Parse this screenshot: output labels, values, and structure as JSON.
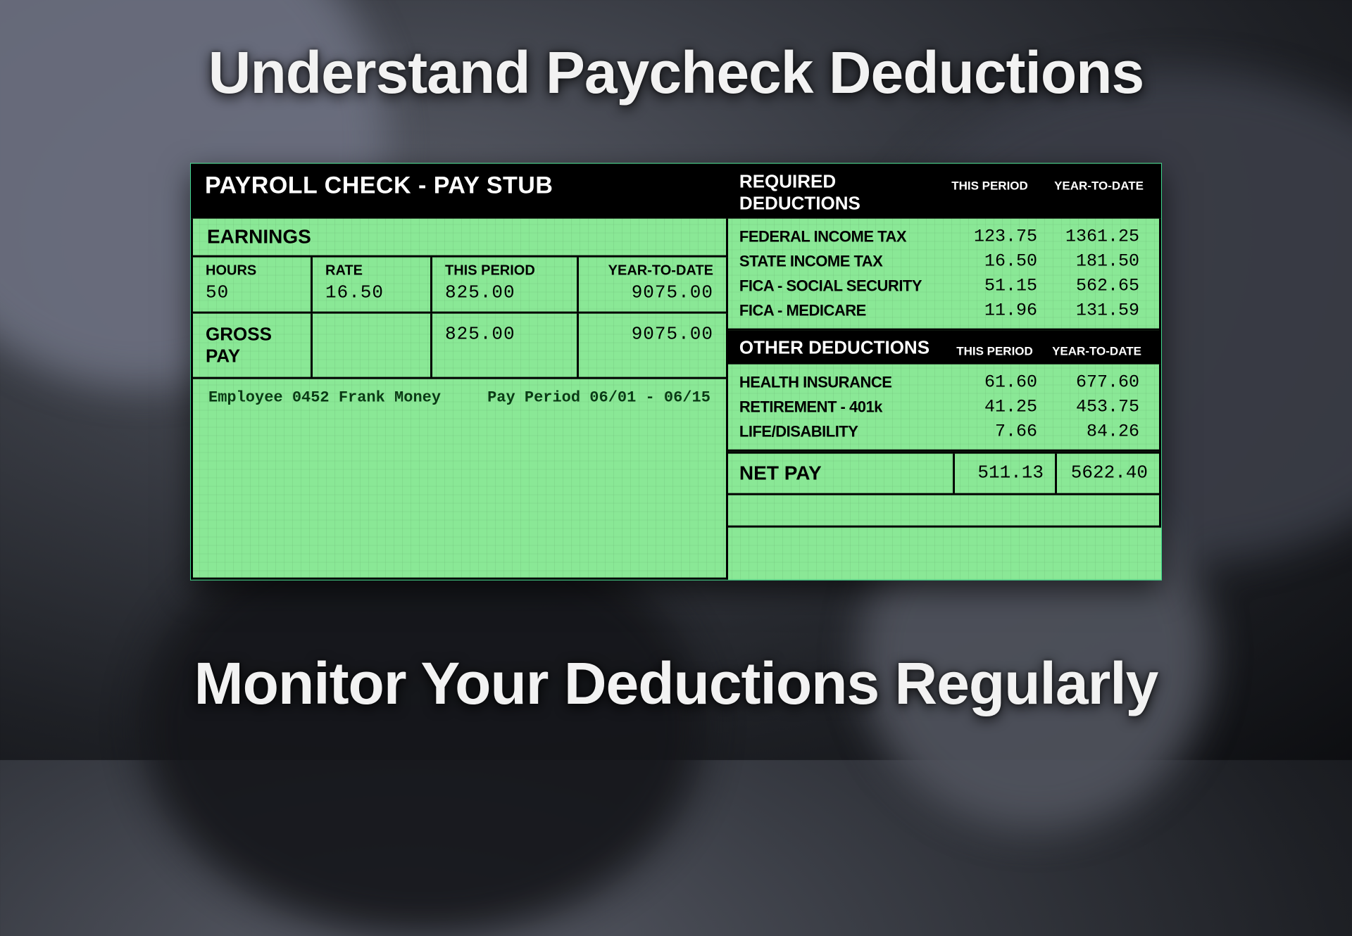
{
  "colors": {
    "stub_bg": "#8ae896",
    "stub_border": "#3fd88f",
    "black": "#000000",
    "text_light": "#f2f2f2",
    "employee_text": "#0a3a15"
  },
  "typography": {
    "heading_fontsize": 84,
    "heading_weight": 900,
    "stub_title_fontsize": 34,
    "section_header_fontsize": 26,
    "label_fontsize": 22,
    "mono_value_fontsize": 25
  },
  "headings": {
    "top": "Understand Paycheck Deductions",
    "bottom": "Monitor Your Deductions Regularly"
  },
  "stub": {
    "title": "PAYROLL CHECK - PAY STUB",
    "earnings_label": "EARNINGS",
    "col_labels": {
      "hours": "HOURS",
      "rate": "RATE",
      "this_period": "THIS PERIOD",
      "ytd": "YEAR-TO-DATE"
    },
    "earnings": {
      "hours": "50",
      "rate": "16.50",
      "this_period": "825.00",
      "ytd": "9075.00"
    },
    "gross_label": "GROSS PAY",
    "gross": {
      "this_period": "825.00",
      "ytd": "9075.00"
    },
    "employee_line": "Employee 0452 Frank Money     Pay Period 06/01 - 06/15",
    "required": {
      "header": "REQUIRED DEDUCTIONS",
      "col_this": "THIS PERIOD",
      "col_ytd": "YEAR-TO-DATE",
      "rows": [
        {
          "label": "FEDERAL INCOME TAX",
          "this": "123.75",
          "ytd": "1361.25"
        },
        {
          "label": "STATE INCOME TAX",
          "this": "16.50",
          "ytd": "181.50"
        },
        {
          "label": "FICA - SOCIAL SECURITY",
          "this": "51.15",
          "ytd": "562.65"
        },
        {
          "label": "FICA - MEDICARE",
          "this": "11.96",
          "ytd": "131.59"
        }
      ]
    },
    "other": {
      "header": "OTHER DEDUCTIONS",
      "col_this": "THIS PERIOD",
      "col_ytd": "YEAR-TO-DATE",
      "rows": [
        {
          "label": "HEALTH INSURANCE",
          "this": "61.60",
          "ytd": "677.60"
        },
        {
          "label": "RETIREMENT - 401k",
          "this": "41.25",
          "ytd": "453.75"
        },
        {
          "label": "LIFE/DISABILITY",
          "this": "7.66",
          "ytd": "84.26"
        }
      ]
    },
    "net": {
      "label": "NET PAY",
      "this": "511.13",
      "ytd": "5622.40"
    }
  }
}
